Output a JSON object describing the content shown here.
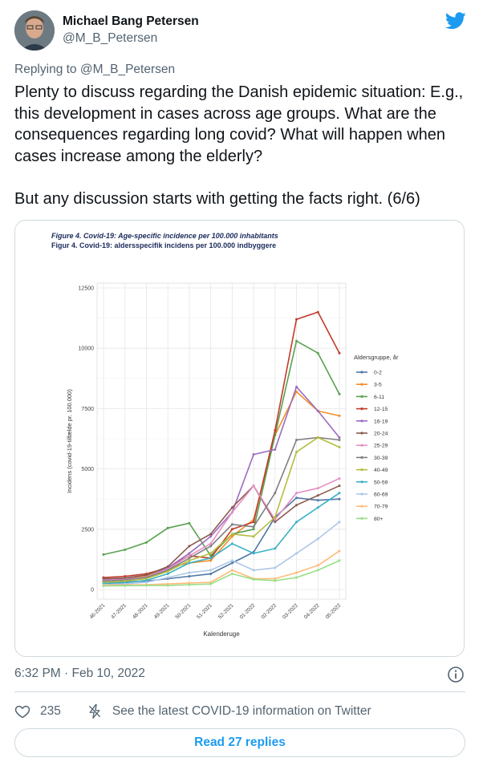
{
  "author": {
    "name": "Michael Bang Petersen",
    "handle": "@M_B_Petersen"
  },
  "reply": {
    "prefix": "Replying to ",
    "handle": "@M_B_Petersen"
  },
  "tweet_text": "Plenty to discuss regarding the Danish epidemic situation: E.g., this development in cases across age groups. What are the consequences regarding long covid? What will happen when cases increase among the elderly?\n\nBut any discussion starts with getting the facts right. (6/6)",
  "timestamp": "6:32 PM · Feb 10, 2022",
  "likes": "235",
  "covid_link": "See the latest COVID-19 information on Twitter",
  "read_replies": "Read 27 replies",
  "colors": {
    "accent": "#1d9bf0",
    "muted": "#536471",
    "border": "#cfd9de"
  },
  "icons": {
    "brand": "twitter-bird-icon",
    "info": "info-icon",
    "like": "heart-icon",
    "covid": "lightning-icon"
  },
  "chart_data": {
    "type": "line",
    "title": "Figure 4. Covid-19: Age-specific incidence per 100.000 inhabitants",
    "subtitle": "Figur 4. Covid-19: aldersspecifik incidens per 100.000 indbyggere",
    "xlabel": "Kalenderuge",
    "ylabel": "Incidens (covid-19-tilfælde pr. 100.000)",
    "ylim": [
      0,
      12500
    ],
    "yticks": [
      "0",
      "2500",
      "5000",
      "7500",
      "10000",
      "12500"
    ],
    "ytick_values": [
      0,
      2500,
      5000,
      7500,
      10000,
      12500
    ],
    "legend_title": "Aldersgruppe, år",
    "legend_position": "right",
    "grid": true,
    "x": [
      "46-2021",
      "47-2021",
      "48-2021",
      "49-2021",
      "50-2021",
      "51-2021",
      "52-2021",
      "01-2022",
      "02-2022",
      "03-2022",
      "04-2022",
      "05-2022"
    ],
    "series": [
      {
        "name": "0-2",
        "color": "#4f78a8",
        "values": [
          300,
          320,
          350,
          450,
          550,
          650,
          1100,
          1550,
          3000,
          3800,
          3700,
          3750
        ]
      },
      {
        "name": "3-5",
        "color": "#f28e2b",
        "values": [
          420,
          450,
          550,
          900,
          1100,
          1200,
          2200,
          2900,
          6400,
          8200,
          7400,
          7200
        ]
      },
      {
        "name": "6-11",
        "color": "#59a14f",
        "values": [
          1450,
          1650,
          1950,
          2550,
          2750,
          1400,
          2300,
          2500,
          6400,
          10300,
          9800,
          8100
        ]
      },
      {
        "name": "12-15",
        "color": "#c23b2b",
        "values": [
          500,
          550,
          650,
          900,
          1400,
          1300,
          2500,
          2800,
          6600,
          11200,
          11500,
          9800
        ]
      },
      {
        "name": "16-19",
        "color": "#9c6bbf",
        "values": [
          400,
          450,
          500,
          900,
          1500,
          2200,
          3200,
          5600,
          5800,
          8400,
          7400,
          6300
        ]
      },
      {
        "name": "20-24",
        "color": "#8b5a4f",
        "values": [
          450,
          480,
          600,
          950,
          1800,
          2300,
          3400,
          4300,
          2800,
          3500,
          3900,
          4300
        ]
      },
      {
        "name": "25-29",
        "color": "#e58fc3",
        "values": [
          380,
          420,
          520,
          850,
          1400,
          1900,
          3200,
          4300,
          2900,
          4000,
          4200,
          4600
        ]
      },
      {
        "name": "30-39",
        "color": "#7f7f7f",
        "values": [
          350,
          400,
          500,
          800,
          1300,
          1800,
          2700,
          2600,
          4000,
          6200,
          6300,
          6200
        ]
      },
      {
        "name": "40-49",
        "color": "#b5bd3e",
        "values": [
          300,
          350,
          450,
          750,
          1200,
          1500,
          2300,
          2200,
          3000,
          5700,
          6300,
          5900
        ]
      },
      {
        "name": "50-59",
        "color": "#3ab1c4",
        "values": [
          250,
          280,
          380,
          650,
          1100,
          1300,
          1900,
          1500,
          1700,
          2800,
          3400,
          4000
        ]
      },
      {
        "name": "60-69",
        "color": "#aec7e8",
        "values": [
          200,
          230,
          300,
          500,
          700,
          800,
          1200,
          800,
          900,
          1500,
          2100,
          2800
        ]
      },
      {
        "name": "70-79",
        "color": "#ffbb78",
        "values": [
          180,
          190,
          200,
          230,
          270,
          300,
          800,
          450,
          450,
          700,
          1000,
          1600
        ]
      },
      {
        "name": "80+",
        "color": "#98df8a",
        "values": [
          150,
          160,
          170,
          170,
          200,
          230,
          650,
          420,
          370,
          500,
          800,
          1200
        ]
      }
    ]
  }
}
